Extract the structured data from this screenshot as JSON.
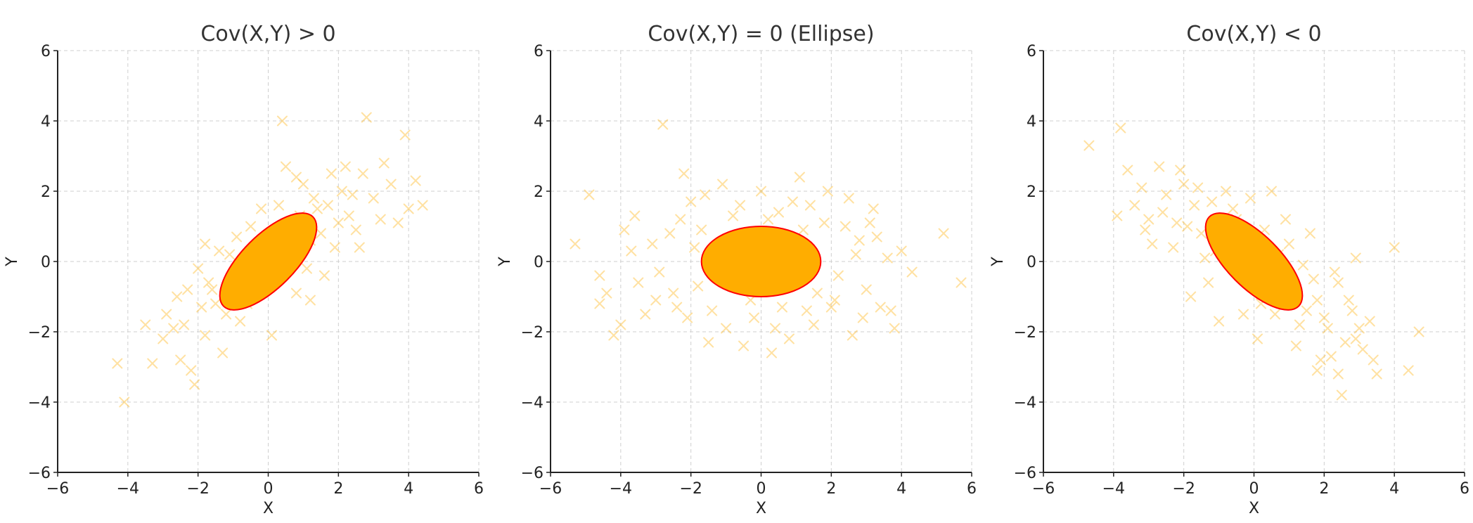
{
  "colors": {
    "points": "#ffbe33",
    "ellipse_fill": "#ffad00",
    "ellipse_edge": "#ff0000"
  },
  "chart_data": [
    {
      "type": "scatter",
      "title": "Cov(X,Y) > 0",
      "xlabel": "X",
      "ylabel": "Y",
      "xlim": [
        -6,
        6
      ],
      "ylim": [
        -6,
        6
      ],
      "xticks": [
        -6,
        -4,
        -2,
        0,
        2,
        4,
        6
      ],
      "yticks": [
        -6,
        -4,
        -2,
        0,
        2,
        4,
        6
      ],
      "grid": true,
      "marker": "x",
      "ellipse": {
        "center": [
          0,
          0
        ],
        "semi_major": 1.8,
        "semi_minor": 0.75,
        "angle_deg": 45
      },
      "points": [
        [
          -4.3,
          -2.9
        ],
        [
          -4.1,
          -4.0
        ],
        [
          -3.3,
          -2.9
        ],
        [
          -3.0,
          -2.2
        ],
        [
          -2.9,
          -1.5
        ],
        [
          -2.6,
          -1.0
        ],
        [
          -2.5,
          -2.8
        ],
        [
          -2.2,
          -3.1
        ],
        [
          -2.1,
          -3.5
        ],
        [
          -2.0,
          -0.2
        ],
        [
          -1.8,
          -2.1
        ],
        [
          -1.7,
          -0.6
        ],
        [
          -1.5,
          -1.2
        ],
        [
          -1.3,
          -2.6
        ],
        [
          -1.1,
          0.2
        ],
        [
          -0.9,
          0.7
        ],
        [
          -0.8,
          -1.7
        ],
        [
          -0.5,
          1.0
        ],
        [
          -0.3,
          -0.4
        ],
        [
          0.1,
          -2.1
        ],
        [
          0.3,
          1.6
        ],
        [
          0.4,
          4.0
        ],
        [
          0.5,
          2.7
        ],
        [
          0.6,
          0.3
        ],
        [
          0.8,
          -0.9
        ],
        [
          1.0,
          2.2
        ],
        [
          1.2,
          0.6
        ],
        [
          1.4,
          1.5
        ],
        [
          1.6,
          -0.4
        ],
        [
          1.8,
          2.5
        ],
        [
          2.0,
          1.1
        ],
        [
          2.2,
          2.7
        ],
        [
          2.4,
          1.9
        ],
        [
          2.6,
          0.4
        ],
        [
          2.8,
          4.1
        ],
        [
          3.0,
          1.8
        ],
        [
          3.2,
          1.2
        ],
        [
          3.5,
          2.2
        ],
        [
          3.7,
          1.1
        ],
        [
          3.9,
          3.6
        ],
        [
          4.0,
          1.5
        ],
        [
          4.2,
          2.3
        ],
        [
          4.4,
          1.6
        ],
        [
          -2.4,
          -1.8
        ],
        [
          -1.9,
          -1.3
        ],
        [
          -1.6,
          -0.8
        ],
        [
          -1.2,
          -1.5
        ],
        [
          -0.7,
          -0.2
        ],
        [
          -0.4,
          0.4
        ],
        [
          0.0,
          -0.6
        ],
        [
          0.2,
          0.9
        ],
        [
          0.7,
          0.1
        ],
        [
          0.9,
          1.3
        ],
        [
          1.1,
          -0.2
        ],
        [
          1.3,
          1.8
        ],
        [
          1.5,
          0.8
        ],
        [
          1.7,
          1.6
        ],
        [
          2.1,
          2.0
        ],
        [
          2.3,
          1.3
        ],
        [
          -3.5,
          -1.8
        ],
        [
          -2.7,
          -1.9
        ],
        [
          -2.3,
          -0.8
        ],
        [
          -1.4,
          0.3
        ],
        [
          -1.0,
          -0.9
        ],
        [
          -0.6,
          -1.2
        ],
        [
          0.5,
          -0.3
        ],
        [
          1.9,
          0.4
        ],
        [
          2.7,
          2.5
        ],
        [
          3.3,
          2.8
        ],
        [
          -1.8,
          0.5
        ],
        [
          -0.2,
          1.5
        ],
        [
          0.8,
          2.4
        ],
        [
          1.2,
          -1.1
        ],
        [
          2.5,
          0.9
        ]
      ]
    },
    {
      "type": "scatter",
      "title": "Cov(X,Y) = 0 (Ellipse)",
      "xlabel": "X",
      "ylabel": "Y",
      "xlim": [
        -6,
        6
      ],
      "ylim": [
        -6,
        6
      ],
      "xticks": [
        -6,
        -4,
        -2,
        0,
        2,
        4,
        6
      ],
      "yticks": [
        -6,
        -4,
        -2,
        0,
        2,
        4,
        6
      ],
      "grid": true,
      "marker": "x",
      "ellipse": {
        "center": [
          0,
          0
        ],
        "semi_major": 1.7,
        "semi_minor": 1.0,
        "angle_deg": 0
      },
      "points": [
        [
          -5.3,
          0.5
        ],
        [
          -4.9,
          1.9
        ],
        [
          -4.6,
          -0.4
        ],
        [
          -4.6,
          -1.2
        ],
        [
          -4.2,
          -2.1
        ],
        [
          -4.0,
          -1.8
        ],
        [
          -3.7,
          0.3
        ],
        [
          -3.5,
          -0.6
        ],
        [
          -3.3,
          -1.5
        ],
        [
          -3.0,
          -1.1
        ],
        [
          -2.8,
          3.9
        ],
        [
          -2.6,
          0.8
        ],
        [
          -2.4,
          -1.3
        ],
        [
          -2.2,
          2.5
        ],
        [
          -2.0,
          1.7
        ],
        [
          -1.8,
          -0.7
        ],
        [
          -1.5,
          -2.3
        ],
        [
          -1.2,
          0.1
        ],
        [
          -1.0,
          -1.9
        ],
        [
          -0.8,
          1.3
        ],
        [
          -0.5,
          -2.4
        ],
        [
          -0.2,
          -1.6
        ],
        [
          0.0,
          2.0
        ],
        [
          0.3,
          -2.6
        ],
        [
          0.5,
          1.4
        ],
        [
          0.8,
          -2.2
        ],
        [
          1.1,
          2.4
        ],
        [
          1.3,
          -1.4
        ],
        [
          1.6,
          -0.9
        ],
        [
          1.9,
          2.0
        ],
        [
          2.1,
          -1.1
        ],
        [
          2.4,
          1.0
        ],
        [
          2.6,
          -2.1
        ],
        [
          2.8,
          0.6
        ],
        [
          3.0,
          -0.8
        ],
        [
          3.2,
          1.5
        ],
        [
          3.4,
          -1.3
        ],
        [
          3.6,
          0.1
        ],
        [
          3.8,
          -1.9
        ],
        [
          4.0,
          0.3
        ],
        [
          4.3,
          -0.3
        ],
        [
          5.2,
          0.8
        ],
        [
          5.7,
          -0.6
        ],
        [
          -3.9,
          0.9
        ],
        [
          -3.1,
          0.5
        ],
        [
          -2.9,
          -0.3
        ],
        [
          -2.5,
          -0.9
        ],
        [
          -2.3,
          1.2
        ],
        [
          -1.9,
          0.4
        ],
        [
          -1.6,
          1.9
        ],
        [
          -1.4,
          -1.4
        ],
        [
          -0.9,
          -0.4
        ],
        [
          -0.6,
          1.6
        ],
        [
          -0.3,
          -1.1
        ],
        [
          0.2,
          1.2
        ],
        [
          0.6,
          -1.3
        ],
        [
          0.9,
          1.7
        ],
        [
          1.2,
          0.9
        ],
        [
          1.5,
          -1.8
        ],
        [
          1.8,
          1.1
        ],
        [
          2.2,
          -0.4
        ],
        [
          2.5,
          1.8
        ],
        [
          2.9,
          -1.6
        ],
        [
          3.3,
          0.7
        ],
        [
          3.7,
          -1.4
        ],
        [
          -3.6,
          1.3
        ],
        [
          -2.1,
          -1.6
        ],
        [
          -1.1,
          2.2
        ],
        [
          0.4,
          -1.9
        ],
        [
          1.4,
          1.6
        ],
        [
          2.7,
          0.2
        ],
        [
          -4.4,
          -0.9
        ],
        [
          -1.7,
          0.9
        ],
        [
          2.0,
          -1.3
        ],
        [
          3.1,
          1.1
        ]
      ]
    },
    {
      "type": "scatter",
      "title": "Cov(X,Y) < 0",
      "xlabel": "X",
      "ylabel": "Y",
      "xlim": [
        -6,
        6
      ],
      "ylim": [
        -6,
        6
      ],
      "xticks": [
        -6,
        -4,
        -2,
        0,
        2,
        4,
        6
      ],
      "yticks": [
        -6,
        -4,
        -2,
        0,
        2,
        4,
        6
      ],
      "grid": true,
      "marker": "x",
      "ellipse": {
        "center": [
          0,
          0
        ],
        "semi_major": 1.8,
        "semi_minor": 0.75,
        "angle_deg": -45
      },
      "points": [
        [
          -4.7,
          3.3
        ],
        [
          -3.9,
          1.3
        ],
        [
          -3.8,
          3.8
        ],
        [
          -3.6,
          2.6
        ],
        [
          -3.4,
          1.6
        ],
        [
          -3.2,
          2.1
        ],
        [
          -3.0,
          1.2
        ],
        [
          -2.9,
          0.5
        ],
        [
          -2.7,
          2.7
        ],
        [
          -2.5,
          1.9
        ],
        [
          -2.3,
          0.4
        ],
        [
          -2.1,
          2.6
        ],
        [
          -1.9,
          1.0
        ],
        [
          -1.8,
          -1.0
        ],
        [
          -1.6,
          2.1
        ],
        [
          -1.4,
          0.1
        ],
        [
          -1.2,
          1.7
        ],
        [
          -1.0,
          -1.7
        ],
        [
          -0.8,
          2.0
        ],
        [
          -0.5,
          1.2
        ],
        [
          -0.3,
          -1.5
        ],
        [
          -0.1,
          1.8
        ],
        [
          0.1,
          -2.2
        ],
        [
          0.3,
          0.9
        ],
        [
          0.5,
          2.0
        ],
        [
          0.8,
          -0.6
        ],
        [
          1.0,
          0.5
        ],
        [
          1.2,
          -2.4
        ],
        [
          1.4,
          -0.1
        ],
        [
          1.6,
          0.8
        ],
        [
          1.8,
          -1.1
        ],
        [
          1.9,
          -2.8
        ],
        [
          2.1,
          -1.9
        ],
        [
          2.3,
          -0.3
        ],
        [
          2.4,
          -3.2
        ],
        [
          2.5,
          -3.8
        ],
        [
          2.6,
          -2.3
        ],
        [
          2.8,
          -1.4
        ],
        [
          2.9,
          0.1
        ],
        [
          3.1,
          -2.5
        ],
        [
          3.3,
          -1.7
        ],
        [
          3.5,
          -3.2
        ],
        [
          4.0,
          0.4
        ],
        [
          4.4,
          -3.1
        ],
        [
          4.7,
          -2.0
        ],
        [
          -2.6,
          1.4
        ],
        [
          -2.2,
          1.1
        ],
        [
          -1.5,
          0.8
        ],
        [
          -1.1,
          0.3
        ],
        [
          -0.7,
          0.9
        ],
        [
          -0.4,
          -0.2
        ],
        [
          0.0,
          0.6
        ],
        [
          0.4,
          -0.8
        ],
        [
          0.7,
          0.2
        ],
        [
          1.1,
          -0.9
        ],
        [
          1.5,
          -1.4
        ],
        [
          1.7,
          -0.5
        ],
        [
          2.0,
          -1.6
        ],
        [
          2.2,
          -2.7
        ],
        [
          2.7,
          -1.1
        ],
        [
          3.0,
          -1.9
        ],
        [
          -3.1,
          0.9
        ],
        [
          -2.0,
          2.2
        ],
        [
          -1.3,
          -0.6
        ],
        [
          -0.6,
          1.5
        ],
        [
          0.2,
          -1.2
        ],
        [
          0.9,
          1.2
        ],
        [
          1.3,
          -1.8
        ],
        [
          2.4,
          -0.6
        ],
        [
          3.4,
          -2.8
        ],
        [
          -1.7,
          1.6
        ],
        [
          -0.2,
          0.4
        ],
        [
          0.6,
          -1.5
        ],
        [
          1.8,
          -3.1
        ],
        [
          2.9,
          -2.2
        ]
      ]
    }
  ]
}
